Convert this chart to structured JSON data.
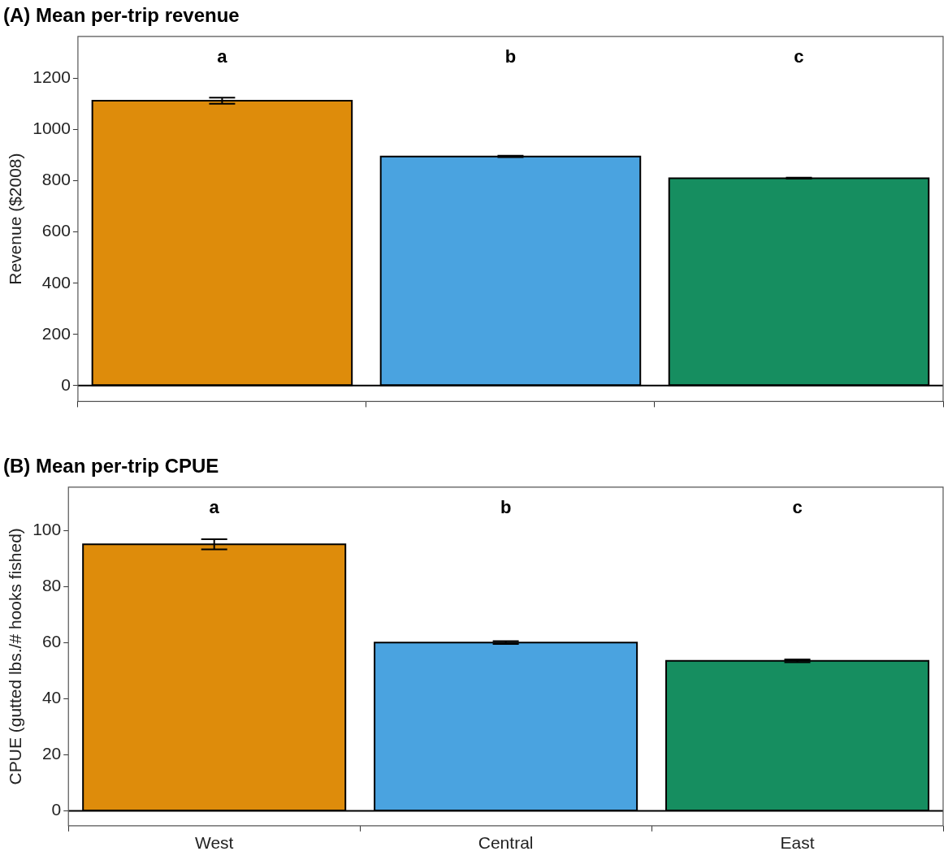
{
  "chart_data": [
    {
      "type": "bar",
      "title": "(A) Mean per-trip revenue",
      "ylabel": "Revenue ($2008)",
      "categories": [
        null,
        null,
        null
      ],
      "values": [
        1113,
        895,
        810
      ],
      "errors": [
        12,
        3,
        2
      ],
      "colors": [
        "#de8c0b",
        "#4aa3e0",
        "#168e60"
      ],
      "ylim": [
        -62,
        1364
      ],
      "yticks": [
        0,
        200,
        400,
        600,
        800,
        1000,
        1200
      ],
      "grid": false,
      "legend": false,
      "tick_labels": "y",
      "ref_lines": [
        {
          "axis": "y",
          "value": 0,
          "color": "#000000"
        }
      ],
      "annotations": [
        "a",
        "b",
        "c"
      ]
    },
    {
      "type": "bar",
      "title": "(B) Mean per-trip CPUE",
      "ylabel": "CPUE (gutted lbs./# hooks fished)",
      "categories": [
        "West",
        "Central",
        "East"
      ],
      "values": [
        95,
        60,
        53.5
      ],
      "errors": [
        1.8,
        0.5,
        0.5
      ],
      "colors": [
        "#de8c0b",
        "#4aa3e0",
        "#168e60"
      ],
      "ylim": [
        -5.3,
        115.4
      ],
      "yticks": [
        0,
        20,
        40,
        60,
        80,
        100
      ],
      "grid": false,
      "legend": false,
      "ref_lines": [
        {
          "axis": "y",
          "value": 0,
          "color": "#000000"
        }
      ],
      "annotations": [
        "a",
        "b",
        "c"
      ]
    }
  ]
}
